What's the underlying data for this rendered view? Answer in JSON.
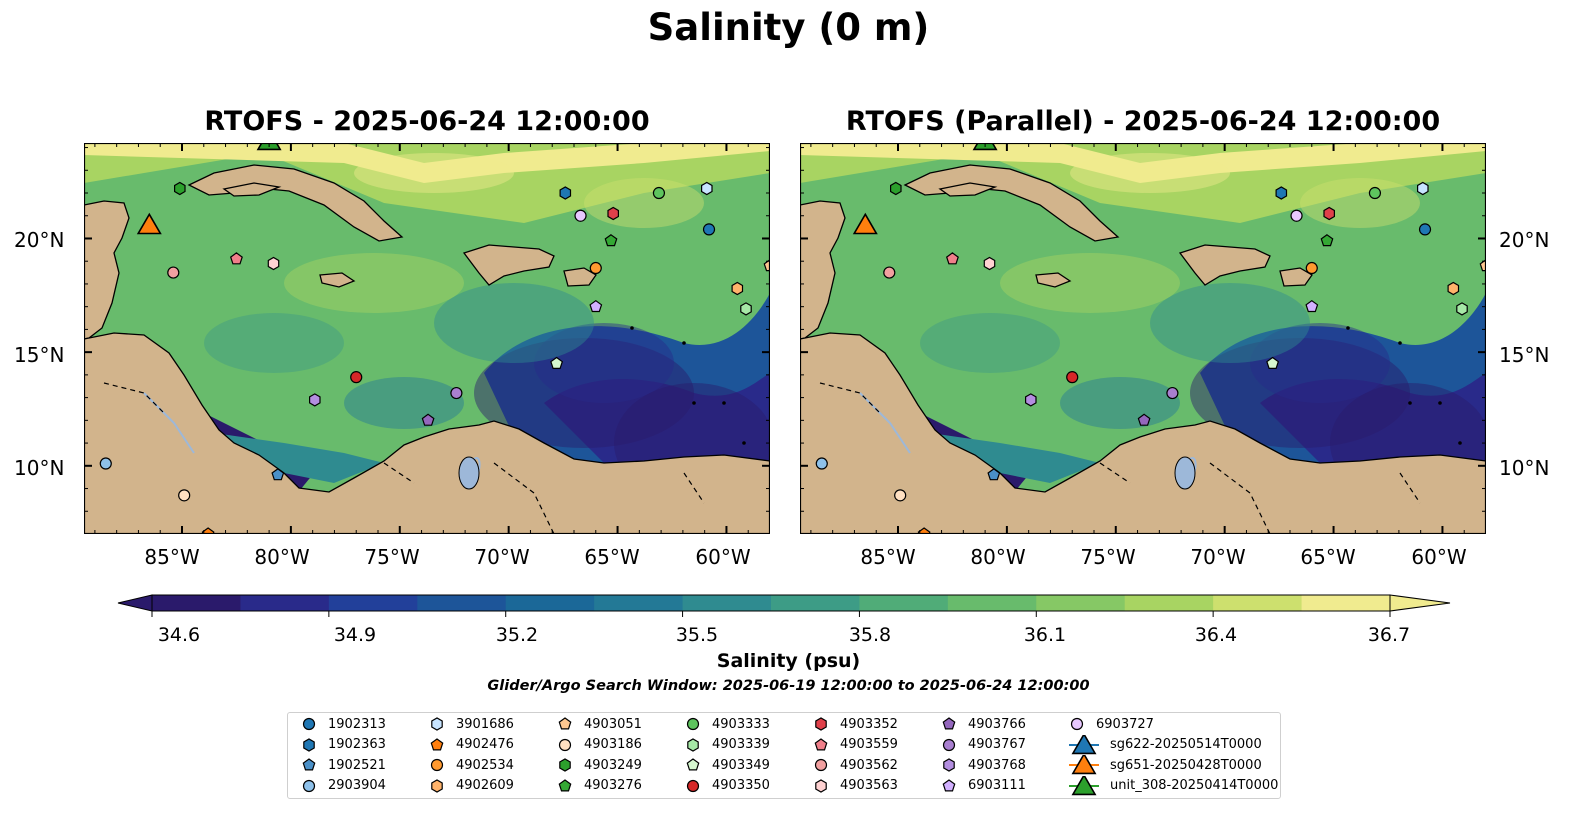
{
  "figure": {
    "suptitle": "Salinity (0 m)",
    "panels": [
      {
        "title": "RTOFS - 2025-06-24 12:00:00"
      },
      {
        "title": "RTOFS (Parallel) - 2025-06-24 12:00:00"
      }
    ],
    "lat_ticks": [
      "20°N",
      "15°N",
      "10°N"
    ],
    "lon_ticks": [
      "85°W",
      "80°W",
      "75°W",
      "70°W",
      "65°W",
      "60°W"
    ],
    "colorbar": {
      "label": "Salinity (psu)",
      "ticks": [
        "34.6",
        "34.9",
        "35.2",
        "35.5",
        "35.8",
        "36.1",
        "36.4",
        "36.7"
      ],
      "min": 34.6,
      "max": 36.7,
      "extend": "both",
      "colormap": "haline-like",
      "colors": [
        "#2a1a6b",
        "#292a8a",
        "#22409a",
        "#1d5599",
        "#1b6898",
        "#237996",
        "#2f8b90",
        "#3d9c86",
        "#50ac78",
        "#68bb6c",
        "#86c865",
        "#a8d462",
        "#cde06e",
        "#f0eb8f"
      ]
    },
    "window_note": "Glider/Argo Search Window: 2025-06-19 12:00:00 to 2025-06-24 12:00:00",
    "land_color": "#d2b48c",
    "river_color": "#9db8d9"
  },
  "chart_data": {
    "type": "map",
    "extent": {
      "lon": [
        -89.5,
        -58
      ],
      "lat": [
        7,
        24.2
      ]
    },
    "platforms": [
      {
        "id": "1902313",
        "marker": "circle",
        "color": "#1f77b4",
        "lon": -60.8,
        "lat": 20.4
      },
      {
        "id": "1902363",
        "marker": "hexagon",
        "color": "#1f77b4",
        "lon": -67.4,
        "lat": 22.0
      },
      {
        "id": "1902521",
        "marker": "pentagon",
        "color": "#4a90c8",
        "lon": -80.6,
        "lat": 9.6
      },
      {
        "id": "2903904",
        "marker": "circle",
        "color": "#8ec1ea",
        "lon": -88.5,
        "lat": 10.1
      },
      {
        "id": "3901686",
        "marker": "hexagon",
        "color": "#c7e4ff",
        "lon": -60.9,
        "lat": 22.2
      },
      {
        "id": "4902476",
        "marker": "pentagon",
        "color": "#ff7f0e",
        "lon": -83.8,
        "lat": 7.0
      },
      {
        "id": "4902534",
        "marker": "circle",
        "color": "#ff9a30",
        "lon": -66.0,
        "lat": 18.7
      },
      {
        "id": "4902609",
        "marker": "hexagon",
        "color": "#ffb36b",
        "lon": -59.5,
        "lat": 17.8
      },
      {
        "id": "4903051",
        "marker": "pentagon",
        "color": "#ffc891",
        "lon": -58.0,
        "lat": 18.8
      },
      {
        "id": "4903186",
        "marker": "circle",
        "color": "#ffe0c2",
        "lon": -84.9,
        "lat": 8.7
      },
      {
        "id": "4903249",
        "marker": "hexagon",
        "color": "#2ca02c",
        "lon": -85.1,
        "lat": 22.2
      },
      {
        "id": "4903276",
        "marker": "pentagon",
        "color": "#34a834",
        "lon": -65.3,
        "lat": 19.9
      },
      {
        "id": "4903333",
        "marker": "circle",
        "color": "#5ec45e",
        "lon": -63.1,
        "lat": 22.0
      },
      {
        "id": "4903339",
        "marker": "hexagon",
        "color": "#a6e8a6",
        "lon": -59.1,
        "lat": 16.9
      },
      {
        "id": "4903349",
        "marker": "pentagon",
        "color": "#d6f7cf",
        "lon": -67.8,
        "lat": 14.5
      },
      {
        "id": "4903350",
        "marker": "circle",
        "color": "#d62728",
        "lon": -77.0,
        "lat": 13.9
      },
      {
        "id": "4903352",
        "marker": "hexagon",
        "color": "#e0404a",
        "lon": -65.2,
        "lat": 21.1
      },
      {
        "id": "4903559",
        "marker": "pentagon",
        "color": "#f07f8a",
        "lon": -82.5,
        "lat": 19.1
      },
      {
        "id": "4903562",
        "marker": "circle",
        "color": "#f2a0a0",
        "lon": -85.4,
        "lat": 18.5
      },
      {
        "id": "4903563",
        "marker": "hexagon",
        "color": "#ffd2d2",
        "lon": -80.8,
        "lat": 18.9
      },
      {
        "id": "4903766",
        "marker": "pentagon",
        "color": "#9467bd",
        "lon": -73.7,
        "lat": 12.0
      },
      {
        "id": "4903767",
        "marker": "circle",
        "color": "#a97fd0",
        "lon": -72.4,
        "lat": 13.2
      },
      {
        "id": "4903768",
        "marker": "hexagon",
        "color": "#b38ee0",
        "lon": -78.9,
        "lat": 12.9
      },
      {
        "id": "6903111",
        "marker": "pentagon",
        "color": "#d2b0ff",
        "lon": -66.0,
        "lat": 17.0
      },
      {
        "id": "6903727",
        "marker": "circle",
        "color": "#e7c8ff",
        "lon": -66.7,
        "lat": 21.0
      },
      {
        "id": "sg622-20250514T0000",
        "marker": "triangle",
        "color": "#1f77b4",
        "lon": null,
        "lat": null
      },
      {
        "id": "sg651-20250428T0000",
        "marker": "triangle",
        "color": "#ff7f0e",
        "lon": -86.5,
        "lat": 20.5
      },
      {
        "id": "unit_308-20250414T0000",
        "marker": "triangle",
        "color": "#2ca02c",
        "lon": -81.0,
        "lat": 24.2
      }
    ]
  }
}
